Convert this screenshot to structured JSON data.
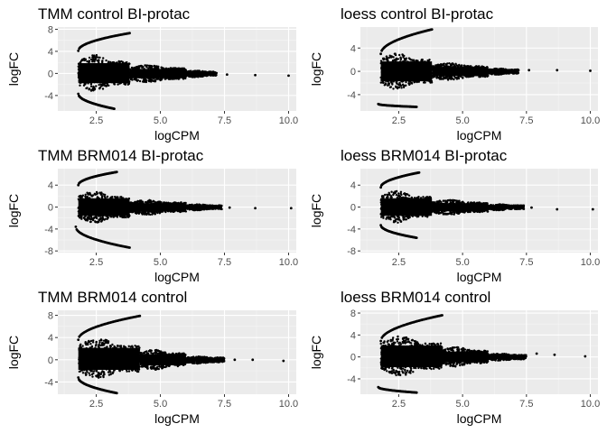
{
  "chart_data": [
    {
      "type": "scatter",
      "title": "TMM control BI-protac",
      "xlabel": "logCPM",
      "ylabel": "logFC",
      "xlim": [
        1.0,
        10.3
      ],
      "ylim": [
        -6.8,
        8.4
      ],
      "x_ticks": [
        "2.5",
        "5.0",
        "7.5",
        "10.0"
      ],
      "y_ticks": [
        "-4",
        "0",
        "4",
        "8"
      ],
      "grid": true,
      "clouds": [
        {
          "x_start": 1.8,
          "x_end": 3.8,
          "upper": 3.4,
          "lower": -3.2
        },
        {
          "x_start": 3.8,
          "x_end": 6.0,
          "upper": 1.5,
          "lower": -1.6
        },
        {
          "x_start": 6.0,
          "x_end": 7.2,
          "upper": 0.5,
          "lower": -0.7
        }
      ],
      "upper_arc": {
        "x": [
          1.8,
          3.8
        ],
        "y": [
          4.1,
          7.3
        ]
      },
      "lower_arc": {
        "x": [
          1.8,
          3.2
        ],
        "y": [
          -3.7,
          -6.4
        ]
      },
      "outliers": [
        {
          "x": 7.6,
          "y": -0.2
        },
        {
          "x": 8.7,
          "y": -0.3
        },
        {
          "x": 10.0,
          "y": -0.4
        }
      ]
    },
    {
      "type": "scatter",
      "title": "loess control BI-protac",
      "xlabel": "logCPM",
      "ylabel": "logFC",
      "xlim": [
        1.0,
        10.3
      ],
      "ylim": [
        -6.8,
        7.6
      ],
      "x_ticks": [
        "2.5",
        "5.0",
        "7.5",
        "10.0"
      ],
      "y_ticks": [
        "-4",
        "0",
        "4"
      ],
      "grid": true,
      "clouds": [
        {
          "x_start": 1.8,
          "x_end": 3.8,
          "upper": 3.1,
          "lower": -3.1
        },
        {
          "x_start": 3.8,
          "x_end": 6.0,
          "upper": 1.4,
          "lower": -1.5
        },
        {
          "x_start": 6.0,
          "x_end": 7.2,
          "upper": 0.5,
          "lower": -0.6
        }
      ],
      "upper_arc": {
        "x": [
          1.8,
          3.8
        ],
        "y": [
          3.0,
          7.2
        ]
      },
      "lower_arc": {
        "x": [
          1.7,
          3.2
        ],
        "y": [
          -5.6,
          -6.1
        ]
      },
      "outliers": [
        {
          "x": 7.6,
          "y": 0.2
        },
        {
          "x": 8.7,
          "y": 0.2
        },
        {
          "x": 10.0,
          "y": 0.1
        }
      ]
    },
    {
      "type": "scatter",
      "title": "TMM BRM014 BI-protac",
      "xlabel": "logCPM",
      "ylabel": "logFC",
      "xlim": [
        1.0,
        10.3
      ],
      "ylim": [
        -8.3,
        7.0
      ],
      "x_ticks": [
        "2.5",
        "5.0",
        "7.5",
        "10.0"
      ],
      "y_ticks": [
        "-8",
        "-4",
        "0",
        "4"
      ],
      "grid": true,
      "clouds": [
        {
          "x_start": 1.8,
          "x_end": 3.8,
          "upper": 2.9,
          "lower": -2.9
        },
        {
          "x_start": 3.8,
          "x_end": 6.0,
          "upper": 1.3,
          "lower": -1.4
        },
        {
          "x_start": 6.0,
          "x_end": 7.4,
          "upper": 0.5,
          "lower": -0.6
        }
      ],
      "upper_arc": {
        "x": [
          1.8,
          3.3
        ],
        "y": [
          4.0,
          6.4
        ]
      },
      "lower_arc": {
        "x": [
          1.7,
          3.8
        ],
        "y": [
          -3.6,
          -7.4
        ]
      },
      "outliers": [
        {
          "x": 7.7,
          "y": -0.1
        },
        {
          "x": 8.7,
          "y": -0.2
        },
        {
          "x": 10.1,
          "y": -0.2
        }
      ]
    },
    {
      "type": "scatter",
      "title": "loess BRM014 BI-protac",
      "xlabel": "logCPM",
      "ylabel": "logFC",
      "xlim": [
        1.0,
        10.3
      ],
      "ylim": [
        -8.3,
        7.0
      ],
      "x_ticks": [
        "2.5",
        "5.0",
        "7.5",
        "10.0"
      ],
      "y_ticks": [
        "-8",
        "-4",
        "0",
        "4"
      ],
      "grid": true,
      "clouds": [
        {
          "x_start": 1.8,
          "x_end": 3.8,
          "upper": 2.9,
          "lower": -2.9
        },
        {
          "x_start": 3.8,
          "x_end": 6.0,
          "upper": 1.3,
          "lower": -1.4
        },
        {
          "x_start": 6.0,
          "x_end": 7.4,
          "upper": 0.5,
          "lower": -0.6
        }
      ],
      "upper_arc": {
        "x": [
          1.8,
          3.3
        ],
        "y": [
          3.6,
          6.3
        ]
      },
      "lower_arc": {
        "x": [
          1.8,
          3.2
        ],
        "y": [
          -3.3,
          -5.6
        ]
      },
      "outliers": [
        {
          "x": 7.7,
          "y": -0.1
        },
        {
          "x": 8.7,
          "y": -0.4
        },
        {
          "x": 10.1,
          "y": -0.4
        }
      ]
    },
    {
      "type": "scatter",
      "title": "TMM BRM014 control",
      "xlabel": "logCPM",
      "ylabel": "logFC",
      "xlim": [
        1.0,
        10.3
      ],
      "ylim": [
        -6.2,
        8.9
      ],
      "x_ticks": [
        "2.5",
        "5.0",
        "7.5",
        "10.0"
      ],
      "y_ticks": [
        "-4",
        "0",
        "4",
        "8"
      ],
      "grid": true,
      "clouds": [
        {
          "x_start": 1.8,
          "x_end": 4.2,
          "upper": 3.9,
          "lower": -3.3
        },
        {
          "x_start": 4.2,
          "x_end": 6.0,
          "upper": 1.8,
          "lower": -1.8
        },
        {
          "x_start": 6.0,
          "x_end": 7.5,
          "upper": 0.6,
          "lower": -0.7
        }
      ],
      "upper_arc": {
        "x": [
          1.8,
          4.2
        ],
        "y": [
          3.6,
          7.9
        ]
      },
      "lower_arc": {
        "x": [
          1.8,
          3.3
        ],
        "y": [
          -3.2,
          -6.0
        ]
      },
      "outliers": [
        {
          "x": 7.9,
          "y": 0.0
        },
        {
          "x": 8.6,
          "y": 0.0
        },
        {
          "x": 9.8,
          "y": -0.2
        }
      ]
    },
    {
      "type": "scatter",
      "title": "loess BRM014 control",
      "xlabel": "logCPM",
      "ylabel": "logFC",
      "xlim": [
        1.0,
        10.3
      ],
      "ylim": [
        -6.8,
        8.5
      ],
      "x_ticks": [
        "2.5",
        "5.0",
        "7.5",
        "10.0"
      ],
      "y_ticks": [
        "-4",
        "0",
        "4",
        "8"
      ],
      "grid": true,
      "clouds": [
        {
          "x_start": 1.8,
          "x_end": 4.2,
          "upper": 3.8,
          "lower": -3.4
        },
        {
          "x_start": 4.2,
          "x_end": 6.0,
          "upper": 1.8,
          "lower": -1.8
        },
        {
          "x_start": 6.0,
          "x_end": 7.5,
          "upper": 0.6,
          "lower": -0.7
        }
      ],
      "upper_arc": {
        "x": [
          1.8,
          4.2
        ],
        "y": [
          2.9,
          7.6
        ]
      },
      "lower_arc": {
        "x": [
          1.7,
          3.2
        ],
        "y": [
          -5.5,
          -6.5
        ]
      },
      "outliers": [
        {
          "x": 7.9,
          "y": 0.6
        },
        {
          "x": 8.6,
          "y": 0.4
        },
        {
          "x": 9.8,
          "y": 0.1
        }
      ]
    }
  ]
}
